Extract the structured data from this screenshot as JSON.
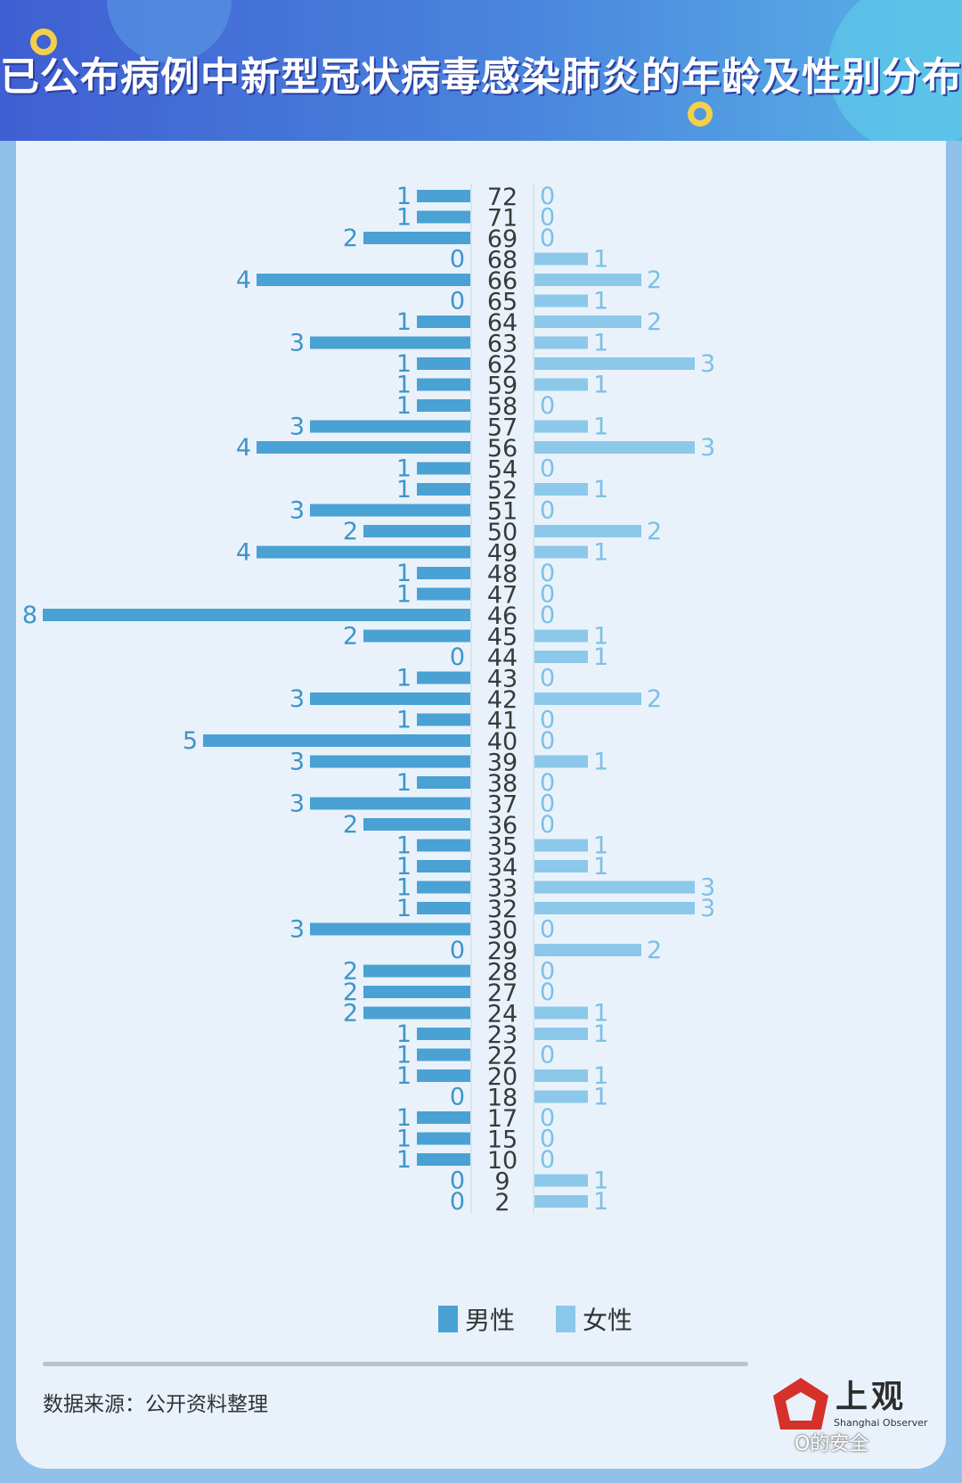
{
  "title": "已公布病例中新型冠状病毒感染肺炎的年龄及性别分布",
  "colors": {
    "male": "#4aa1d4",
    "female": "#8cc8ea",
    "male_label": "#3f94c8",
    "female_label": "#7cc0e6",
    "accent": "#f4d04a"
  },
  "legend": {
    "male": "男性",
    "female": "女性"
  },
  "source": "数据来源：公开资料整理",
  "logo": {
    "name": "上观",
    "subtitle": "Shanghai Observer",
    "watermark": "O的安全"
  },
  "chart_data": {
    "type": "bar",
    "orientation": "horizontal-butterfly",
    "title": "已公布病例中新型冠状病毒感染肺炎的年龄及性别分布",
    "categories": [
      "72",
      "71",
      "69",
      "68",
      "66",
      "65",
      "64",
      "63",
      "62",
      "59",
      "58",
      "57",
      "56",
      "54",
      "52",
      "51",
      "50",
      "49",
      "48",
      "47",
      "46",
      "45",
      "44",
      "43",
      "42",
      "41",
      "40",
      "39",
      "38",
      "37",
      "36",
      "35",
      "34",
      "33",
      "32",
      "30",
      "29",
      "28",
      "27",
      "24",
      "23",
      "22",
      "20",
      "18",
      "17",
      "15",
      "10",
      "9",
      "2"
    ],
    "series": [
      {
        "name": "男性",
        "values": [
          1,
          1,
          2,
          0,
          4,
          0,
          1,
          3,
          1,
          1,
          1,
          3,
          4,
          1,
          1,
          3,
          2,
          4,
          1,
          1,
          8,
          2,
          0,
          1,
          3,
          1,
          5,
          3,
          1,
          3,
          2,
          1,
          1,
          1,
          1,
          3,
          0,
          2,
          2,
          2,
          1,
          1,
          1,
          0,
          1,
          1,
          1,
          0,
          0
        ]
      },
      {
        "name": "女性",
        "values": [
          0,
          0,
          0,
          1,
          2,
          1,
          2,
          1,
          3,
          1,
          0,
          1,
          3,
          0,
          1,
          0,
          2,
          1,
          0,
          0,
          0,
          1,
          1,
          0,
          2,
          0,
          0,
          1,
          0,
          0,
          0,
          1,
          1,
          3,
          3,
          0,
          2,
          0,
          0,
          1,
          1,
          0,
          1,
          1,
          0,
          0,
          0,
          1,
          1
        ]
      }
    ],
    "xlabel": "",
    "ylabel": "",
    "xlim_male": [
      0,
      8
    ],
    "xlim_female": [
      0,
      3
    ]
  }
}
